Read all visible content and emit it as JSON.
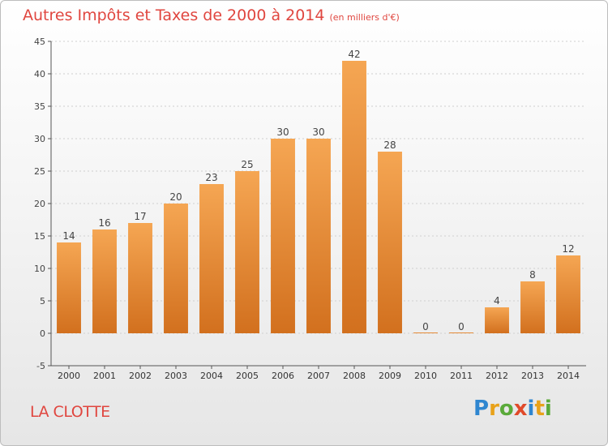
{
  "title": "Autres Impôts et Taxes de 2000 à 2014",
  "subtitle": "(en milliers d'€)",
  "commune": "LA CLOTTE",
  "logo": {
    "text": "Proxiti",
    "letters": [
      {
        "ch": "P",
        "color": "#2f86d0"
      },
      {
        "ch": "r",
        "color": "#e8a21a"
      },
      {
        "ch": "o",
        "color": "#5aaa3a"
      },
      {
        "ch": "x",
        "color": "#e04a2a"
      },
      {
        "ch": "i",
        "color": "#2f86d0"
      },
      {
        "ch": "t",
        "color": "#e8a21a"
      },
      {
        "ch": "i",
        "color": "#5aaa3a"
      }
    ]
  },
  "colors": {
    "title": "#e0463f",
    "bar_light": "#f5a653",
    "bar_dark": "#d2701e",
    "axis": "#555555",
    "grid": "#cfcfcf"
  },
  "chart_data": {
    "type": "bar",
    "title": "Autres Impôts et Taxes de 2000 à 2014",
    "subtitle": "(en milliers d'€)",
    "xlabel": "",
    "ylabel": "",
    "categories": [
      "2000",
      "2001",
      "2002",
      "2003",
      "2004",
      "2005",
      "2006",
      "2007",
      "2008",
      "2009",
      "2010",
      "2011",
      "2012",
      "2013",
      "2014"
    ],
    "values": [
      14,
      16,
      17,
      20,
      23,
      25,
      30,
      30,
      42,
      28,
      0,
      0,
      4,
      8,
      12
    ],
    "data_labels": [
      "14",
      "16",
      "17",
      "20",
      "23",
      "25",
      "30",
      "30",
      "42",
      "28",
      "0",
      "0",
      "4",
      "8",
      "12"
    ],
    "ylim": [
      -5,
      45
    ],
    "yticks": [
      -5,
      0,
      5,
      10,
      15,
      20,
      25,
      30,
      35,
      40,
      45
    ],
    "grid": true,
    "legend": "none"
  }
}
